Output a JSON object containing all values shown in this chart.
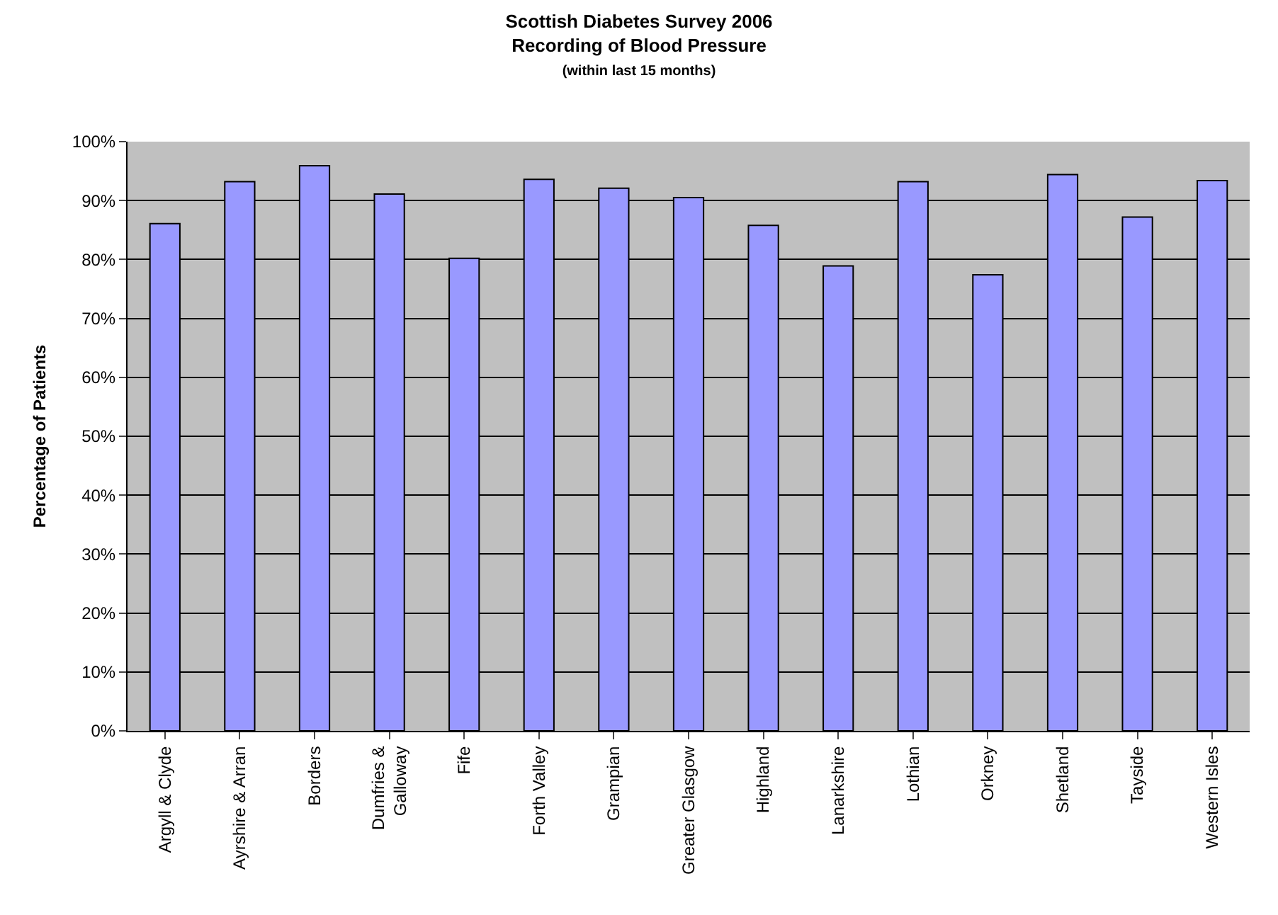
{
  "chart_data": {
    "type": "bar",
    "title": "Scottish Diabetes Survey 2006",
    "subtitle": "Recording of Blood Pressure",
    "annotations": [
      "(within last 15 months)"
    ],
    "ylabel": "Percentage of Patients",
    "categories": [
      "Argyll & Clyde",
      "Ayrshire & Arran",
      "Borders",
      "Dumfries & Galloway",
      "Fife",
      "Forth Valley",
      "Grampian",
      "Greater Glasgow",
      "Highland",
      "Lanarkshire",
      "Lothian",
      "Orkney",
      "Shetland",
      "Tayside",
      "Western Isles"
    ],
    "values": [
      86.1,
      93.2,
      95.9,
      91.1,
      80.2,
      93.6,
      92.1,
      90.5,
      85.8,
      78.9,
      93.2,
      77.4,
      94.4,
      87.2,
      93.4
    ],
    "color": "#9999ff",
    "ylim": [
      0,
      100
    ],
    "yticks": [
      {
        "value": 0,
        "label": "0%"
      },
      {
        "value": 10,
        "label": "10%"
      },
      {
        "value": 20,
        "label": "20%"
      },
      {
        "value": 30,
        "label": "30%"
      },
      {
        "value": 40,
        "label": "40%"
      },
      {
        "value": 50,
        "label": "50%"
      },
      {
        "value": 60,
        "label": "60%"
      },
      {
        "value": 70,
        "label": "70%"
      },
      {
        "value": 80,
        "label": "80%"
      },
      {
        "value": 90,
        "label": "90%"
      },
      {
        "value": 100,
        "label": "100%"
      }
    ],
    "grid": "y"
  }
}
